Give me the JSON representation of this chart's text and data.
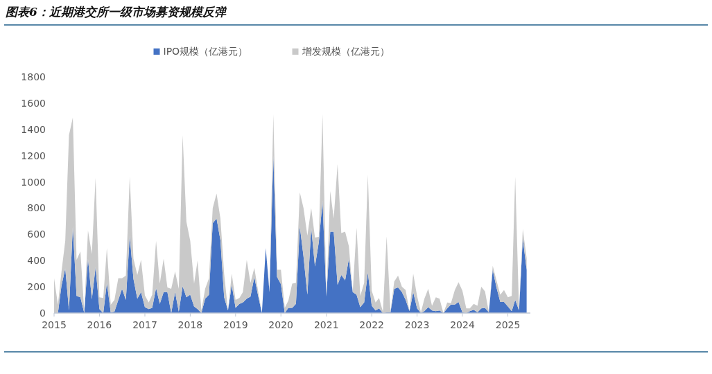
{
  "chart_data": {
    "type": "area",
    "title": "图表6：近期港交所一级市场募资规模反弹",
    "stacked": true,
    "legend": "top",
    "grid": false,
    "x": [
      "2015-01",
      "2015-02",
      "2015-03",
      "2015-04",
      "2015-05",
      "2015-06",
      "2015-07",
      "2015-08",
      "2015-09",
      "2015-10",
      "2015-11",
      "2015-12",
      "2016-01",
      "2016-02",
      "2016-03",
      "2016-04",
      "2016-05",
      "2016-06",
      "2016-07",
      "2016-08",
      "2016-09",
      "2016-10",
      "2016-11",
      "2016-12",
      "2017-01",
      "2017-02",
      "2017-03",
      "2017-04",
      "2017-05",
      "2017-06",
      "2017-07",
      "2017-08",
      "2017-09",
      "2017-10",
      "2017-11",
      "2017-12",
      "2018-01",
      "2018-02",
      "2018-03",
      "2018-04",
      "2018-05",
      "2018-06",
      "2018-07",
      "2018-08",
      "2018-09",
      "2018-10",
      "2018-11",
      "2018-12",
      "2019-01",
      "2019-02",
      "2019-03",
      "2019-04",
      "2019-05",
      "2019-06",
      "2019-07",
      "2019-08",
      "2019-09",
      "2019-10",
      "2019-11",
      "2019-12",
      "2020-01",
      "2020-02",
      "2020-03",
      "2020-04",
      "2020-05",
      "2020-06",
      "2020-07",
      "2020-08",
      "2020-09",
      "2020-10",
      "2020-11",
      "2020-12",
      "2021-01",
      "2021-02",
      "2021-03",
      "2021-04",
      "2021-05",
      "2021-06",
      "2021-07",
      "2021-08",
      "2021-09",
      "2021-10",
      "2021-11",
      "2021-12",
      "2022-01",
      "2022-02",
      "2022-03",
      "2022-04",
      "2022-05",
      "2022-06",
      "2022-07",
      "2022-08",
      "2022-09",
      "2022-10",
      "2022-11",
      "2022-12",
      "2023-01",
      "2023-02",
      "2023-03",
      "2023-04",
      "2023-05",
      "2023-06",
      "2023-07",
      "2023-08",
      "2023-09",
      "2023-10",
      "2023-11",
      "2023-12",
      "2024-01",
      "2024-02",
      "2024-03",
      "2024-04",
      "2024-05",
      "2024-06",
      "2024-07",
      "2024-08",
      "2024-09",
      "2024-10",
      "2024-11",
      "2024-12",
      "2025-01",
      "2025-02",
      "2025-03",
      "2025-04",
      "2025-05",
      "2025-06"
    ],
    "xlim": [
      "2015-01",
      "2025-07"
    ],
    "xticks": [
      {
        "value": "2015-01",
        "label": "2015"
      },
      {
        "value": "2016-01",
        "label": "2016"
      },
      {
        "value": "2017-01",
        "label": "2017"
      },
      {
        "value": "2018-01",
        "label": "2018"
      },
      {
        "value": "2019-01",
        "label": "2019"
      },
      {
        "value": "2020-01",
        "label": "2020"
      },
      {
        "value": "2021-01",
        "label": "2021"
      },
      {
        "value": "2022-01",
        "label": "2022"
      },
      {
        "value": "2023-01",
        "label": "2023"
      },
      {
        "value": "2024-01",
        "label": "2024"
      },
      {
        "value": "2025-01",
        "label": "2025"
      }
    ],
    "ylim": [
      0,
      1800
    ],
    "yticks": [
      0,
      200,
      400,
      600,
      800,
      1000,
      1200,
      1400,
      1600,
      1800
    ],
    "series": [
      {
        "name": "IPO规模（亿港元）",
        "color": "#4472c4",
        "values": [
          0,
          0,
          205,
          340,
          20,
          660,
          130,
          120,
          0,
          415,
          105,
          350,
          30,
          0,
          230,
          5,
          10,
          100,
          185,
          100,
          590,
          260,
          110,
          160,
          45,
          30,
          40,
          190,
          70,
          160,
          160,
          0,
          160,
          10,
          205,
          120,
          140,
          50,
          30,
          0,
          110,
          140,
          685,
          720,
          555,
          120,
          20,
          215,
          40,
          70,
          80,
          110,
          125,
          275,
          135,
          0,
          495,
          160,
          1200,
          275,
          220,
          0,
          40,
          40,
          70,
          660,
          430,
          140,
          650,
          355,
          540,
          855,
          125,
          620,
          620,
          215,
          290,
          250,
          415,
          160,
          140,
          45,
          80,
          310,
          55,
          20,
          35,
          0,
          5,
          5,
          185,
          195,
          160,
          100,
          15,
          160,
          35,
          0,
          15,
          45,
          20,
          15,
          20,
          0,
          35,
          65,
          65,
          85,
          5,
          0,
          15,
          25,
          5,
          35,
          40,
          5,
          330,
          195,
          85,
          85,
          50,
          15,
          100,
          20,
          570,
          330
        ]
      },
      {
        "name": "增发规模（亿港元）",
        "color": "#c9c9c9",
        "values": [
          265,
          63,
          105,
          210,
          1337,
          830,
          275,
          350,
          10,
          215,
          345,
          680,
          90,
          115,
          265,
          58,
          90,
          165,
          80,
          185,
          450,
          155,
          180,
          245,
          90,
          50,
          100,
          360,
          155,
          255,
          35,
          185,
          157,
          175,
          1152,
          577,
          410,
          175,
          370,
          20,
          75,
          125,
          115,
          190,
          165,
          180,
          0,
          85,
          60,
          45,
          80,
          295,
          105,
          70,
          35,
          0,
          0,
          10,
          315,
          55,
          110,
          40,
          55,
          185,
          160,
          260,
          370,
          450,
          150,
          220,
          40,
          660,
          0,
          310,
          100,
          920,
          320,
          370,
          95,
          0,
          510,
          85,
          150,
          745,
          115,
          60,
          80,
          10,
          580,
          5,
          55,
          90,
          40,
          75,
          0,
          140,
          95,
          5,
          95,
          140,
          35,
          105,
          90,
          0,
          45,
          10,
          110,
          150,
          165,
          35,
          20,
          45,
          50,
          165,
          125,
          0,
          30,
          55,
          55,
          90,
          70,
          115,
          940,
          0,
          70,
          90
        ]
      }
    ]
  }
}
